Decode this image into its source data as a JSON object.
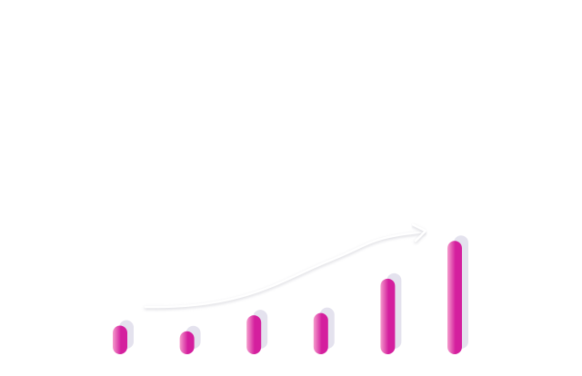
{
  "chart_data": {
    "type": "bar",
    "categories": [
      "",
      "",
      "",
      "",
      "",
      ""
    ],
    "values": [
      2.5,
      2.0,
      3.4,
      3.6,
      6.6,
      9.9
    ],
    "ylim": [
      0,
      10
    ],
    "title": "",
    "xlabel": "",
    "ylabel": "",
    "grid": false,
    "legend": "none",
    "trend_arrow": true,
    "colors": {
      "bar_light": "#f59ccc",
      "bar_dark": "#d41f9e",
      "shadow": "#e4e2ee",
      "arrow": "#ffffff",
      "arrow_shadow": "#cfcfd6",
      "background": "#ffffff"
    }
  }
}
